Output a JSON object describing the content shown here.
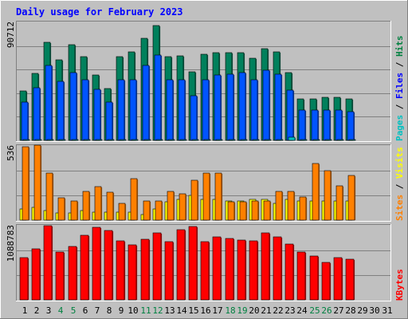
{
  "chart_data": {
    "type": "bar",
    "title": "Daily usage for February 2023",
    "x": [
      "1",
      "2",
      "3",
      "4",
      "5",
      "6",
      "7",
      "8",
      "9",
      "10",
      "11",
      "12",
      "13",
      "14",
      "15",
      "16",
      "17",
      "18",
      "19",
      "20",
      "21",
      "22",
      "23",
      "24",
      "25",
      "26",
      "27",
      "28",
      "29",
      "30",
      "31"
    ],
    "weekend_days": [
      "4",
      "5",
      "11",
      "12",
      "18",
      "19",
      "25",
      "26"
    ],
    "panels": [
      {
        "id": "pages-files-hits",
        "ymax_label": "90712",
        "ylim": [
          0,
          90712
        ],
        "labels": [
          {
            "text": "Pages",
            "color": "#00c0c0"
          },
          {
            "text": "Files",
            "color": "#0000ff"
          },
          {
            "text": "Hits",
            "color": "#008040"
          }
        ],
        "series": [
          {
            "name": "Hits",
            "color": "#00805c",
            "values": [
              37700,
              51400,
              75400,
              62200,
              73700,
              64500,
              50200,
              40100,
              64500,
              68300,
              78600,
              88200,
              64500,
              65000,
              52600,
              66400,
              67700,
              67700,
              67700,
              63300,
              70400,
              68300,
              52200,
              31900,
              31900,
              32800,
              32800,
              31900,
              0,
              0,
              0
            ]
          },
          {
            "name": "Files",
            "color": "#0054ff",
            "values": [
              29500,
              40500,
              57400,
              45400,
              51900,
              46800,
              39300,
              29500,
              46800,
              46800,
              57400,
              65400,
              46800,
              46800,
              34500,
              46800,
              50200,
              51000,
              51900,
              46800,
              54100,
              50600,
              38900,
              23100,
              23100,
              23100,
              23300,
              21900,
              0,
              0,
              0
            ]
          },
          {
            "name": "Pages",
            "color": "#00c0c0",
            "values": [
              900,
              900,
              900,
              900,
              900,
              900,
              900,
              900,
              900,
              900,
              900,
              900,
              900,
              900,
              900,
              900,
              900,
              900,
              900,
              900,
              900,
              900,
              2700,
              900,
              900,
              900,
              900,
              900,
              0,
              0,
              0
            ]
          }
        ]
      },
      {
        "id": "visits-sites",
        "ymax_label": "536",
        "ylim": [
          0,
          536
        ],
        "labels": [
          {
            "text": "Sites",
            "color": "#ff8000"
          },
          {
            "text": "Visits",
            "color": "#ffff00"
          }
        ],
        "series": [
          {
            "name": "Visits",
            "color": "#ffff00",
            "values": [
              80,
              90,
              70,
              50,
              50,
              70,
              60,
              60,
              60,
              60,
              40,
              80,
              130,
              150,
              180,
              150,
              150,
              140,
              140,
              150,
              150,
              120,
              150,
              140,
              140,
              140,
              140,
              140,
              0,
              0,
              0
            ]
          },
          {
            "name": "Sites",
            "color": "#ff8000",
            "values": [
              530,
              540,
              340,
              160,
              140,
              210,
              240,
              200,
              120,
              300,
              140,
              140,
              210,
              190,
              290,
              340,
              340,
              130,
              130,
              140,
              140,
              210,
              210,
              170,
              410,
              360,
              250,
              320,
              0,
              0,
              0
            ]
          }
        ]
      },
      {
        "id": "kbytes",
        "ymax_label": "1088783",
        "ylim": [
          0,
          1088783
        ],
        "labels": [
          {
            "text": "KBytes",
            "color": "#ff0000"
          }
        ],
        "series": [
          {
            "name": "KBytes",
            "color": "#ff0000",
            "values": [
              620000,
              750000,
              1090000,
              700000,
              780000,
              950000,
              1060000,
              1020000,
              870000,
              810000,
              890000,
              980000,
              860000,
              1030000,
              1080000,
              850000,
              920000,
              900000,
              880000,
              870000,
              980000,
              920000,
              820000,
              700000,
              640000,
              550000,
              620000,
              600000,
              0,
              0,
              0
            ]
          }
        ]
      }
    ]
  }
}
